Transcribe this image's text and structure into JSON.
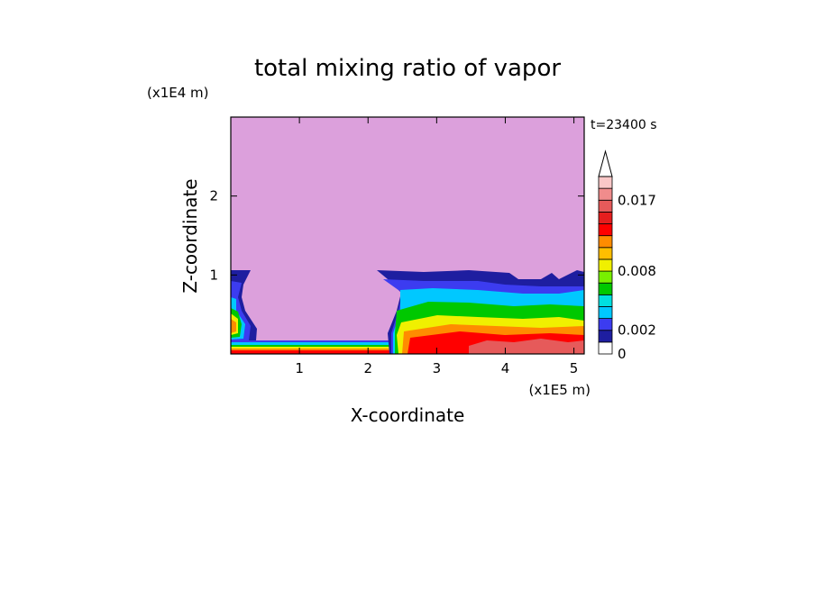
{
  "chart_data": {
    "type": "heatmap",
    "title": "total mixing ratio of vapor",
    "xlabel": "X-coordinate",
    "ylabel": "Z-coordinate",
    "x_unit_label": "(x1E5 m)",
    "y_unit_label": "(x1E4 m)",
    "time_label": "t=23400 s",
    "xlim": [
      0,
      5.15
    ],
    "ylim": [
      0,
      3.0
    ],
    "x_ticks": [
      "1",
      "2",
      "3",
      "4",
      "5"
    ],
    "y_ticks": [
      "1",
      "2"
    ],
    "x_tick_values": [
      1,
      2,
      3,
      4,
      5
    ],
    "y_tick_values": [
      1,
      2
    ],
    "colorbar": {
      "tick_labels": [
        "0",
        "0.002",
        "0.008",
        "0.017"
      ],
      "tick_levels": [
        0,
        2,
        7,
        13
      ],
      "n_levels": 15,
      "extend": "max",
      "level_colors": [
        "#ffffff",
        "#1e1ea0",
        "#3c3cf0",
        "#00c8ff",
        "#00e0e0",
        "#00c800",
        "#78f000",
        "#f0f000",
        "#ffbe00",
        "#ff8c00",
        "#ff0000",
        "#e61e1e",
        "#e65a5a",
        "#f08c8c",
        "#fac8c8"
      ],
      "extend_color": "#ffffff"
    },
    "background_color": "#dca0dc"
  }
}
